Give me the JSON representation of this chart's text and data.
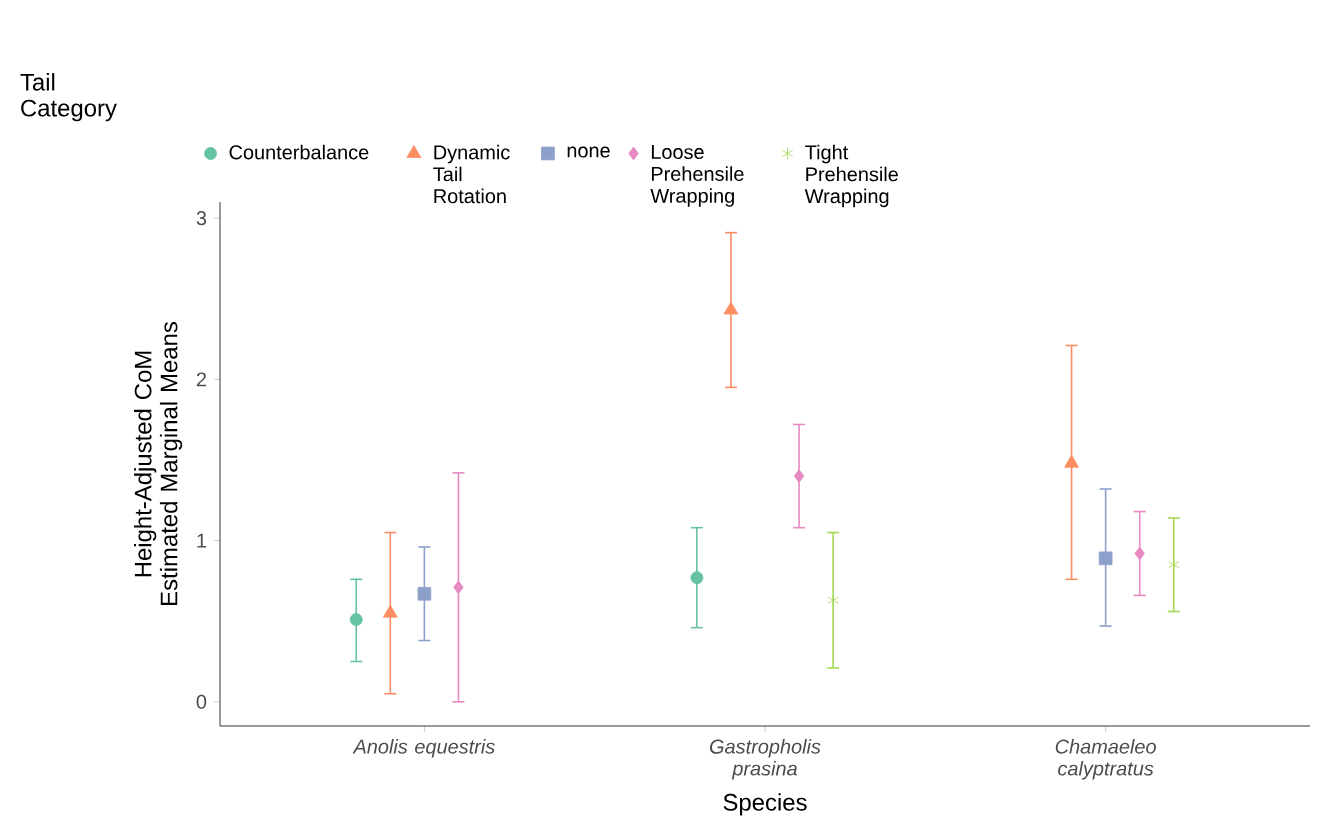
{
  "chart_data": {
    "type": "scatter",
    "xlabel": "Species",
    "ylabel": "Height-Adjusted CoM Estimated Marginal Means",
    "legend_title": "Tail Category",
    "legend": "top",
    "grid": false,
    "categories": [
      "Anolis equestris",
      "Gastropholis prasina",
      "Chamaeleo calyptratus"
    ],
    "ylim": [
      -0.15,
      3.1
    ],
    "yticks": [
      0,
      1,
      2,
      3
    ],
    "series": [
      {
        "name": "Counterbalance",
        "color": "#66c2a5",
        "marker": "circle",
        "values": [
          0.51,
          0.77,
          null
        ],
        "errors": [
          [
            0.25,
            0.76
          ],
          [
            0.46,
            1.08
          ],
          null
        ]
      },
      {
        "name": "Dynamic Tail Rotation",
        "color": "#fc8d62",
        "marker": "triangle",
        "values": [
          0.55,
          2.43,
          1.48
        ],
        "errors": [
          [
            0.05,
            1.05
          ],
          [
            1.95,
            2.91
          ],
          [
            0.76,
            2.21
          ]
        ]
      },
      {
        "name": "none",
        "color": "#8da0cb",
        "marker": "square",
        "values": [
          0.67,
          null,
          0.89
        ],
        "errors": [
          [
            0.38,
            0.96
          ],
          null,
          [
            0.47,
            1.32
          ]
        ]
      },
      {
        "name": "Loose Prehensile Wrapping",
        "color": "#e78ac3",
        "marker": "diamond",
        "values": [
          0.71,
          1.4,
          0.92
        ],
        "errors": [
          [
            0.0,
            1.42
          ],
          [
            1.08,
            1.72
          ],
          [
            0.66,
            1.18
          ]
        ]
      },
      {
        "name": "Tight Prehensile Wrapping",
        "color": "#a6d854",
        "marker": "cross",
        "values": [
          null,
          0.63,
          0.85
        ],
        "errors": [
          null,
          [
            0.21,
            1.05
          ],
          [
            0.56,
            1.14
          ]
        ]
      }
    ]
  }
}
